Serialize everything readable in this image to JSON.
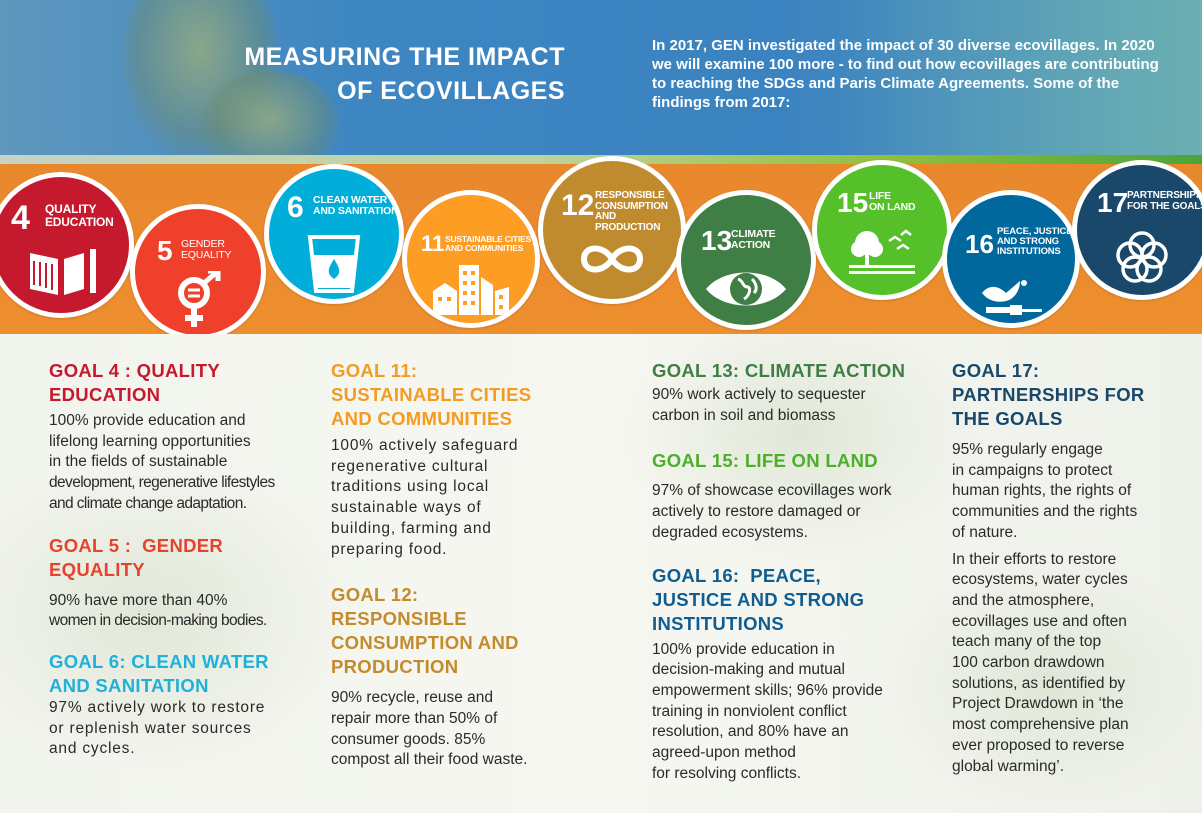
{
  "header": {
    "title_line1": "MEASURING THE IMPACT",
    "title_line2": "OF ECOVILLAGES",
    "intro": "In 2017, GEN investigated the impact of 30 diverse ecovillages. In 2020 we will examine 100 more - to find out how ecovillages are contributing to reaching the SDGs and Paris Climate Agreements. Some of the findings from 2017:"
  },
  "sdg_icons": [
    {
      "number": "4",
      "label1": "QUALITY",
      "label2": "EDUCATION",
      "color": "#c5192d",
      "icon": "book-icon"
    },
    {
      "number": "5",
      "label1": "GENDER",
      "label2": "EQUALITY",
      "color": "#ef402b",
      "icon": "gender-symbol-icon"
    },
    {
      "number": "6",
      "label1": "CLEAN WATER",
      "label2": "AND SANITATION",
      "color": "#00aed9",
      "icon": "water-glass-icon"
    },
    {
      "number": "11",
      "label1": "SUSTAINABLE CITIES",
      "label2": "AND COMMUNITIES",
      "color": "#fd9d24",
      "icon": "buildings-icon"
    },
    {
      "number": "12",
      "label1": "RESPONSIBLE",
      "label2": "CONSUMPTION",
      "label3": "AND PRODUCTION",
      "color": "#bf8b2e",
      "icon": "infinity-icon"
    },
    {
      "number": "13",
      "label1": "CLIMATE",
      "label2": "ACTION",
      "color": "#3f7e44",
      "icon": "eye-globe-icon"
    },
    {
      "number": "15",
      "label1": "LIFE",
      "label2": "ON LAND",
      "color": "#56c02b",
      "icon": "tree-birds-icon"
    },
    {
      "number": "16",
      "label1": "PEACE, JUSTICE",
      "label2": "AND STRONG",
      "label3": "INSTITUTIONS",
      "color": "#00689d",
      "icon": "dove-gavel-icon"
    },
    {
      "number": "17",
      "label1": "PARTNERSHIPS",
      "label2": "FOR THE GOALS",
      "color": "#19486a",
      "icon": "rings-icon"
    }
  ],
  "goals": {
    "g4": {
      "h1": "GOAL 4 : QUALITY",
      "h2": "EDUCATION",
      "color": "#c5192d",
      "lines": [
        "100% provide education and",
        "lifelong learning opportunities",
        "in the fields of sustainable",
        "development, regenerative lifestyles",
        "and climate change adaptation."
      ]
    },
    "g5": {
      "h1": "GOAL 5 :  GENDER",
      "h2": "EQUALITY",
      "color": "#e5432e",
      "lines": [
        "90% have more than 40%",
        "women in decision-making bodies."
      ]
    },
    "g6": {
      "h1": "GOAL 6: CLEAN WATER",
      "h2": "AND SANITATION",
      "color": "#1fb0dc",
      "lines": [
        "97% actively work to restore",
        "or replenish water sources",
        "and cycles."
      ]
    },
    "g11": {
      "h1": "GOAL 11:",
      "h2": "SUSTAINABLE CITIES",
      "h3": "AND COMMUNITIES",
      "color": "#f39b22",
      "lines": [
        "100% actively safeguard",
        "regenerative cultural",
        "traditions using local",
        "sustainable ways of",
        "building, farming and",
        "preparing food."
      ]
    },
    "g12": {
      "h1": "GOAL 12:",
      "h2": "RESPONSIBLE",
      "h3": "CONSUMPTION AND",
      "h4": "PRODUCTION",
      "color": "#c48b2c",
      "lines": [
        "90% recycle, reuse and",
        "repair more than 50% of",
        "consumer goods. 85%",
        "compost all their food waste."
      ]
    },
    "g13": {
      "h1": "GOAL 13: CLIMATE ACTION",
      "color": "#3f7e44",
      "lines": [
        "90% work actively to sequester",
        "carbon in soil and biomass"
      ]
    },
    "g15": {
      "h1": "GOAL 15: LIFE ON LAND",
      "color": "#4caf2a",
      "lines": [
        "97% of showcase ecovillages work",
        "actively to restore damaged or",
        "degraded ecosystems."
      ]
    },
    "g16": {
      "h1": "GOAL 16:  PEACE,",
      "h2": "JUSTICE AND STRONG",
      "h3": "INSTITUTIONS",
      "color": "#0f5d91",
      "lines": [
        "100% provide education in",
        "decision-making and mutual",
        "empowerment skills; 96% provide",
        "training in nonviolent conflict",
        "resolution, and 80% have an",
        "agreed-upon method",
        "for resolving conflicts."
      ]
    },
    "g17": {
      "h1": "GOAL 17:",
      "h2": "PARTNERSHIPS FOR",
      "h3": "THE GOALS",
      "color": "#19486a",
      "lines": [
        "95% regularly engage",
        "in campaigns to protect",
        "human rights, the rights of",
        "communities and the rights",
        "of nature."
      ],
      "lines2": [
        "In their efforts to restore",
        "ecosystems, water cycles",
        "and the atmosphere,",
        "ecovillages use and often",
        "teach many of the top",
        "100 carbon drawdown",
        "solutions, as identified by",
        "Project Drawdown in ‘the",
        "most comprehensive plan",
        "ever proposed to reverse",
        "global warming’."
      ]
    }
  }
}
